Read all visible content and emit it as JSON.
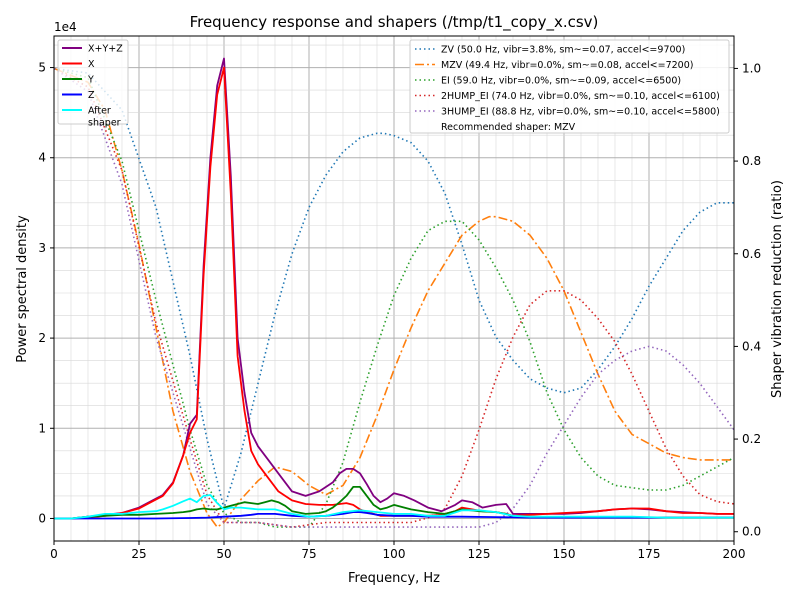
{
  "chart_data": {
    "type": "line",
    "title": "Frequency response and shapers (/tmp/t1_copy_x.csv)",
    "xlabel": "Frequency, Hz",
    "ylabel": "Power spectral density",
    "y2label": "Shaper vibration reduction (ratio)",
    "y_offset_label": "1e4",
    "xlim": [
      0,
      200
    ],
    "ylim": [
      -2500,
      53500
    ],
    "y2lim": [
      -0.02,
      1.07
    ],
    "xticks": [
      0,
      25,
      50,
      75,
      100,
      125,
      150,
      175,
      200
    ],
    "yticks": [
      0,
      10000,
      20000,
      30000,
      40000,
      50000
    ],
    "ytick_labels": [
      "0",
      "1",
      "2",
      "3",
      "4",
      "5"
    ],
    "y2ticks": [
      0.0,
      0.2,
      0.4,
      0.6,
      0.8,
      1.0
    ],
    "y2tick_labels": [
      "0.0",
      "0.2",
      "0.4",
      "0.6",
      "0.8",
      "1.0"
    ],
    "grid": true,
    "legend_left_position": "top-left",
    "legend_right_position": "top-right",
    "psd_series": [
      {
        "name": "X+Y+Z",
        "color": "#800080",
        "style": "solid",
        "x": [
          0,
          5,
          10,
          15,
          20,
          25,
          28,
          32,
          35,
          38,
          40,
          42,
          44,
          46,
          48,
          50,
          52,
          54,
          56,
          58,
          60,
          63,
          66,
          70,
          74,
          78,
          80,
          82,
          84,
          86,
          88,
          90,
          92,
          94,
          96,
          98,
          100,
          103,
          106,
          110,
          114,
          118,
          120,
          123,
          126,
          130,
          133,
          135,
          140,
          145,
          150,
          155,
          160,
          165,
          170,
          175,
          180,
          185,
          190,
          195,
          200
        ],
        "y": [
          0,
          0,
          200,
          400,
          600,
          1200,
          1800,
          2600,
          4000,
          7000,
          10500,
          11500,
          28000,
          40000,
          48000,
          51000,
          38000,
          20000,
          14000,
          9500,
          8000,
          6500,
          5000,
          3000,
          2500,
          3000,
          3500,
          4000,
          5000,
          5500,
          5500,
          5000,
          3800,
          2500,
          1800,
          2200,
          2800,
          2500,
          2000,
          1200,
          800,
          1500,
          2000,
          1800,
          1200,
          1500,
          1600,
          500,
          500,
          500,
          500,
          600,
          800,
          1000,
          1100,
          1000,
          800,
          700,
          600,
          500,
          500
        ]
      },
      {
        "name": "X",
        "color": "#ff0000",
        "style": "solid",
        "x": [
          0,
          5,
          10,
          15,
          20,
          25,
          28,
          32,
          35,
          38,
          40,
          42,
          44,
          46,
          48,
          50,
          52,
          54,
          56,
          58,
          60,
          63,
          66,
          70,
          74,
          78,
          80,
          82,
          84,
          86,
          88,
          90,
          92,
          94,
          96,
          98,
          100,
          103,
          106,
          110,
          114,
          118,
          120,
          123,
          126,
          130,
          133,
          135,
          140,
          145,
          150,
          155,
          160,
          165,
          170,
          175,
          180,
          185,
          190,
          195,
          200
        ],
        "y": [
          0,
          0,
          100,
          300,
          600,
          1100,
          1700,
          2500,
          3900,
          7000,
          9500,
          11000,
          27000,
          39000,
          47000,
          50000,
          36000,
          18000,
          12000,
          7500,
          6000,
          4500,
          3000,
          2000,
          1600,
          1500,
          1500,
          1500,
          1600,
          1700,
          1500,
          1000,
          700,
          500,
          300,
          300,
          300,
          300,
          300,
          300,
          400,
          800,
          1200,
          1000,
          800,
          700,
          500,
          300,
          400,
          500,
          600,
          700,
          800,
          1000,
          1100,
          1100,
          800,
          600,
          600,
          500,
          500
        ]
      },
      {
        "name": "Y",
        "color": "#008000",
        "style": "solid",
        "x": [
          0,
          5,
          10,
          15,
          20,
          25,
          30,
          35,
          38,
          40,
          42,
          44,
          46,
          48,
          50,
          52,
          54,
          56,
          58,
          60,
          62,
          64,
          66,
          68,
          70,
          74,
          78,
          80,
          82,
          84,
          86,
          88,
          90,
          92,
          94,
          96,
          98,
          100,
          105,
          110,
          115,
          120,
          125,
          130,
          133,
          135,
          140,
          150,
          200
        ],
        "y": [
          0,
          0,
          200,
          300,
          400,
          400,
          500,
          600,
          700,
          800,
          1000,
          1100,
          1000,
          1000,
          1200,
          1400,
          1600,
          1800,
          1700,
          1600,
          1800,
          2000,
          1800,
          1400,
          800,
          500,
          600,
          800,
          1200,
          1800,
          2500,
          3500,
          3500,
          2500,
          1500,
          1000,
          1200,
          1500,
          1000,
          700,
          500,
          1000,
          800,
          700,
          500,
          200,
          100,
          100,
          100
        ]
      },
      {
        "name": "Z",
        "color": "#0000ff",
        "style": "solid",
        "x": [
          0,
          10,
          20,
          30,
          40,
          45,
          50,
          55,
          58,
          60,
          62,
          65,
          70,
          75,
          80,
          85,
          88,
          90,
          92,
          95,
          100,
          105,
          110,
          120,
          130,
          140,
          150,
          160,
          170,
          180,
          190,
          200
        ],
        "y": [
          0,
          0,
          0,
          0,
          50,
          100,
          200,
          300,
          400,
          500,
          500,
          500,
          300,
          200,
          300,
          500,
          700,
          700,
          600,
          400,
          300,
          300,
          200,
          200,
          150,
          100,
          100,
          100,
          100,
          100,
          100,
          100
        ]
      },
      {
        "name": "After\nshaper",
        "color": "#00ffff",
        "style": "solid",
        "x": [
          0,
          5,
          10,
          15,
          20,
          25,
          30,
          32,
          35,
          38,
          40,
          42,
          44,
          46,
          48,
          50,
          52,
          55,
          60,
          65,
          70,
          75,
          80,
          85,
          90,
          95,
          100,
          105,
          110,
          115,
          120,
          125,
          130,
          135,
          140,
          150,
          160,
          170,
          180,
          190,
          200
        ],
        "y": [
          0,
          0,
          200,
          500,
          500,
          700,
          800,
          1000,
          1400,
          1900,
          2200,
          1800,
          2500,
          2600,
          1700,
          1000,
          1200,
          1200,
          1000,
          1000,
          500,
          200,
          300,
          700,
          900,
          700,
          500,
          500,
          300,
          300,
          900,
          900,
          700,
          300,
          200,
          200,
          200,
          200,
          100,
          100,
          100
        ]
      }
    ],
    "shapers": [
      {
        "name": "ZV (50.0 Hz, vibr=3.8%, sm~=0.07, accel<=9700)",
        "color": "#1f77b4",
        "style": "dotted",
        "x": [
          0,
          10,
          20,
          30,
          40,
          45,
          50,
          55,
          60,
          65,
          70,
          75,
          80,
          85,
          90,
          95,
          97,
          100,
          105,
          110,
          115,
          120,
          125,
          130,
          135,
          140,
          145,
          150,
          155,
          160,
          165,
          170,
          175,
          180,
          185,
          190,
          195,
          200
        ],
        "y": [
          1.0,
          0.99,
          0.91,
          0.7,
          0.38,
          0.2,
          0.05,
          0.17,
          0.32,
          0.47,
          0.6,
          0.7,
          0.77,
          0.82,
          0.85,
          0.86,
          0.86,
          0.855,
          0.84,
          0.8,
          0.73,
          0.62,
          0.5,
          0.42,
          0.37,
          0.33,
          0.31,
          0.3,
          0.31,
          0.35,
          0.4,
          0.46,
          0.53,
          0.59,
          0.65,
          0.69,
          0.71,
          0.71
        ]
      },
      {
        "name": "MZV (49.4 Hz, vibr=0.0%, sm~=0.08, accel<=7200)",
        "color": "#ff7f0e",
        "style": "dashdot",
        "x": [
          0,
          10,
          15,
          20,
          25,
          30,
          35,
          40,
          45,
          48,
          50,
          52,
          55,
          60,
          65,
          70,
          75,
          80,
          85,
          90,
          95,
          100,
          105,
          110,
          115,
          120,
          125,
          128,
          130,
          135,
          140,
          145,
          150,
          155,
          160,
          165,
          170,
          175,
          180,
          185,
          190,
          195,
          200
        ],
        "y": [
          1.0,
          0.97,
          0.91,
          0.78,
          0.62,
          0.44,
          0.26,
          0.13,
          0.04,
          0.01,
          0.02,
          0.04,
          0.07,
          0.11,
          0.14,
          0.13,
          0.1,
          0.08,
          0.1,
          0.16,
          0.25,
          0.35,
          0.44,
          0.52,
          0.58,
          0.64,
          0.67,
          0.68,
          0.68,
          0.67,
          0.64,
          0.59,
          0.52,
          0.43,
          0.34,
          0.26,
          0.21,
          0.19,
          0.17,
          0.16,
          0.155,
          0.155,
          0.155
        ]
      },
      {
        "name": "EI (59.0 Hz, vibr=0.0%, sm~=0.09, accel<=6500)",
        "color": "#2ca02c",
        "style": "dotted",
        "x": [
          0,
          10,
          20,
          30,
          40,
          45,
          50,
          55,
          60,
          65,
          70,
          75,
          80,
          85,
          90,
          95,
          100,
          105,
          110,
          115,
          120,
          125,
          130,
          135,
          140,
          145,
          150,
          155,
          160,
          165,
          170,
          175,
          180,
          185,
          190,
          195,
          200
        ],
        "y": [
          1.0,
          0.98,
          0.8,
          0.5,
          0.22,
          0.1,
          0.04,
          0.02,
          0.02,
          0.01,
          0.01,
          0.01,
          0.06,
          0.15,
          0.28,
          0.4,
          0.51,
          0.59,
          0.65,
          0.67,
          0.67,
          0.63,
          0.57,
          0.5,
          0.41,
          0.3,
          0.22,
          0.16,
          0.12,
          0.1,
          0.095,
          0.09,
          0.09,
          0.1,
          0.12,
          0.14,
          0.16
        ]
      },
      {
        "name": "2HUMP_EI (74.0 Hz, vibr=0.0%, sm~=0.10, accel<=6100)",
        "color": "#d62728",
        "style": "dotted",
        "x": [
          0,
          10,
          20,
          30,
          40,
          45,
          50,
          55,
          60,
          70,
          80,
          90,
          100,
          105,
          110,
          115,
          120,
          125,
          130,
          135,
          140,
          145,
          150,
          155,
          160,
          165,
          170,
          175,
          180,
          185,
          190,
          195,
          200
        ],
        "y": [
          1.0,
          0.96,
          0.78,
          0.45,
          0.2,
          0.08,
          0.02,
          0.02,
          0.02,
          0.01,
          0.02,
          0.02,
          0.02,
          0.02,
          0.03,
          0.05,
          0.12,
          0.22,
          0.33,
          0.42,
          0.49,
          0.52,
          0.52,
          0.5,
          0.46,
          0.41,
          0.34,
          0.26,
          0.18,
          0.12,
          0.08,
          0.065,
          0.06
        ]
      },
      {
        "name": "3HUMP_EI (88.8 Hz, vibr=0.0%, sm~=0.10, accel<=5800)",
        "color": "#9467bd",
        "style": "dotted",
        "x": [
          0,
          10,
          20,
          30,
          40,
          45,
          50,
          55,
          60,
          70,
          80,
          90,
          100,
          110,
          120,
          125,
          130,
          135,
          140,
          145,
          150,
          155,
          160,
          165,
          170,
          175,
          180,
          185,
          190,
          195,
          200
        ],
        "y": [
          1.0,
          0.95,
          0.75,
          0.42,
          0.18,
          0.06,
          0.02,
          0.02,
          0.02,
          0.01,
          0.01,
          0.01,
          0.01,
          0.01,
          0.01,
          0.01,
          0.02,
          0.05,
          0.1,
          0.17,
          0.23,
          0.29,
          0.34,
          0.37,
          0.39,
          0.4,
          0.39,
          0.36,
          0.32,
          0.27,
          0.22
        ]
      }
    ],
    "recommendation": "Recommended shaper: MZV"
  }
}
